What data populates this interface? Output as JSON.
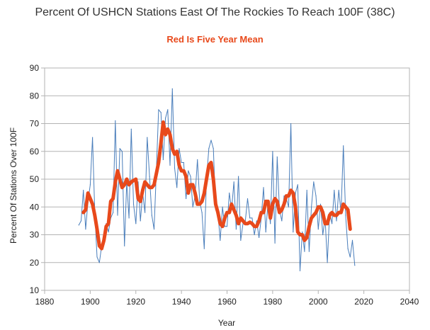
{
  "chart_data": {
    "type": "line",
    "title": "Percent Of USHCN Stations East Of The Rockies To Reach 100F (38C)",
    "subtitle": "Red Is Five Year Mean",
    "xlabel": "Year",
    "ylabel": "Percent Of Stations Over 100F",
    "xlim": [
      1880,
      2040
    ],
    "ylim": [
      10,
      90
    ],
    "x_ticks": [
      1880,
      1900,
      1920,
      1940,
      1960,
      1980,
      2000,
      2020,
      2040
    ],
    "y_ticks": [
      10,
      20,
      30,
      40,
      50,
      60,
      70,
      80,
      90
    ],
    "grid": true,
    "series": [
      {
        "color": "#4a7ebb",
        "x": [
          1895,
          1896,
          1897,
          1898,
          1899,
          1900,
          1901,
          1902,
          1903,
          1904,
          1905,
          1906,
          1907,
          1908,
          1909,
          1910,
          1911,
          1912,
          1913,
          1914,
          1915,
          1916,
          1917,
          1918,
          1919,
          1920,
          1921,
          1922,
          1923,
          1924,
          1925,
          1926,
          1927,
          1928,
          1929,
          1930,
          1931,
          1932,
          1933,
          1934,
          1935,
          1936,
          1937,
          1938,
          1939,
          1940,
          1941,
          1942,
          1943,
          1944,
          1945,
          1946,
          1947,
          1948,
          1949,
          1950,
          1951,
          1952,
          1953,
          1954,
          1955,
          1956,
          1957,
          1958,
          1959,
          1960,
          1961,
          1962,
          1963,
          1964,
          1965,
          1966,
          1967,
          1968,
          1969,
          1970,
          1971,
          1972,
          1973,
          1974,
          1975,
          1976,
          1977,
          1978,
          1979,
          1980,
          1981,
          1982,
          1983,
          1984,
          1985,
          1986,
          1987,
          1988,
          1989,
          1990,
          1991,
          1992,
          1993,
          1994,
          1995,
          1996,
          1997,
          1998,
          1999,
          2000,
          2001,
          2002,
          2003,
          2004,
          2005,
          2006,
          2007,
          2008,
          2009,
          2010,
          2011,
          2012,
          2013,
          2014,
          2015,
          2016
        ],
        "y": [
          33.5,
          35,
          46,
          32,
          42,
          48,
          65,
          38,
          22,
          20,
          26,
          28,
          34,
          31,
          36,
          38,
          71,
          37,
          61,
          60,
          26,
          49,
          36,
          68,
          41,
          34,
          49,
          35,
          45,
          38,
          65,
          51,
          37,
          32,
          53,
          75,
          74,
          57,
          72,
          75,
          55,
          82.5,
          54,
          47,
          61,
          56,
          56,
          43,
          53,
          51,
          40,
          44,
          57,
          42,
          38,
          25,
          50,
          61,
          64,
          61,
          39,
          38,
          28,
          40,
          33,
          33,
          45,
          39,
          49,
          32,
          51,
          28,
          34,
          35,
          43,
          36,
          36,
          30,
          35,
          29,
          36,
          47,
          31,
          42,
          34,
          60,
          27,
          58,
          39,
          35,
          44,
          43,
          40,
          70,
          31,
          45,
          48,
          17,
          31,
          24,
          46,
          24,
          40,
          49,
          44,
          32,
          41,
          30,
          36,
          20,
          38,
          34,
          46,
          35,
          46,
          38,
          62,
          37,
          25,
          22,
          28,
          19
        ]
      },
      {
        "name": "Five Year Mean",
        "color": "#e8491b",
        "x": [
          1897,
          1898,
          1899,
          1900,
          1901,
          1902,
          1903,
          1904,
          1905,
          1906,
          1907,
          1908,
          1909,
          1910,
          1911,
          1912,
          1913,
          1914,
          1915,
          1916,
          1917,
          1918,
          1919,
          1920,
          1921,
          1922,
          1923,
          1924,
          1925,
          1926,
          1927,
          1928,
          1929,
          1930,
          1931,
          1932,
          1933,
          1934,
          1935,
          1936,
          1937,
          1938,
          1939,
          1940,
          1941,
          1942,
          1943,
          1944,
          1945,
          1946,
          1947,
          1948,
          1949,
          1950,
          1951,
          1952,
          1953,
          1954,
          1955,
          1956,
          1957,
          1958,
          1959,
          1960,
          1961,
          1962,
          1963,
          1964,
          1965,
          1966,
          1967,
          1968,
          1969,
          1970,
          1971,
          1972,
          1973,
          1974,
          1975,
          1976,
          1977,
          1978,
          1979,
          1980,
          1981,
          1982,
          1983,
          1984,
          1985,
          1986,
          1987,
          1988,
          1989,
          1990,
          1991,
          1992,
          1993,
          1994,
          1995,
          1996,
          1997,
          1998,
          1999,
          2000,
          2001,
          2002,
          2003,
          2004,
          2005,
          2006,
          2007,
          2008,
          2009,
          2010,
          2011,
          2012,
          2013,
          2014
        ],
        "y": [
          38,
          39,
          45,
          43,
          41,
          37,
          32,
          26,
          25,
          28,
          33,
          34,
          42,
          43,
          49,
          53,
          50,
          47,
          48,
          50,
          48,
          49,
          49.5,
          50,
          43,
          42,
          46,
          49,
          48,
          47,
          47,
          48,
          52,
          56,
          63,
          70.5,
          66,
          68,
          66,
          61,
          59,
          60,
          55,
          53,
          53,
          51,
          45,
          48,
          48,
          45,
          41,
          41,
          42,
          45,
          50,
          55,
          56,
          50,
          41,
          38,
          34,
          33,
          36,
          38,
          38,
          41,
          39,
          37,
          34,
          36,
          35,
          34,
          34,
          34.5,
          34,
          33,
          33,
          35,
          38,
          38,
          42,
          42,
          36,
          41,
          43,
          42,
          38,
          39,
          41,
          44,
          44,
          46,
          45,
          40,
          31,
          30,
          30,
          28,
          29,
          33,
          36,
          37,
          38,
          40,
          40,
          38,
          34,
          34,
          37,
          38,
          37,
          37,
          38,
          38,
          41,
          40,
          39,
          32
        ]
      }
    ]
  }
}
